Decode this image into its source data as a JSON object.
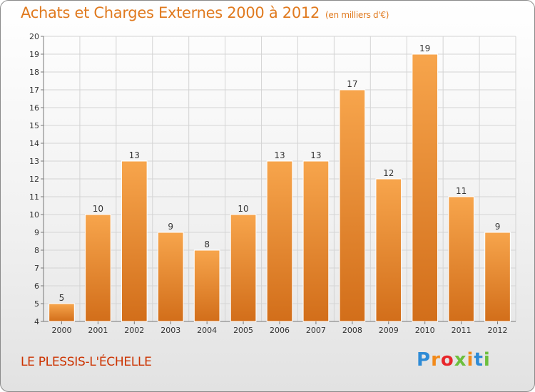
{
  "title": "Achats et Charges Externes 2000 à 2012",
  "unit": "(en milliers d'€)",
  "commune": "LE PLESSIS-L'ÉCHELLE",
  "logo": {
    "text": "Proxiti",
    "letter_colors": [
      "#2e8bd6",
      "#f28a1a",
      "#e8262b",
      "#6cbf3c",
      "#f28a1a",
      "#2e8bd6",
      "#6cbf3c"
    ]
  },
  "colors": {
    "bar_light": "#f7a54c",
    "bar_dark": "#d26e1a",
    "title": "#e07a1f",
    "commune": "#cc3300"
  },
  "chart_data": {
    "type": "bar",
    "title": "Achats et Charges Externes 2000 à 2012",
    "categories": [
      "2000",
      "2001",
      "2002",
      "2003",
      "2004",
      "2005",
      "2006",
      "2007",
      "2008",
      "2009",
      "2010",
      "2011",
      "2012"
    ],
    "values": [
      5,
      10,
      13,
      9,
      8,
      10,
      13,
      13,
      17,
      12,
      19,
      11,
      9
    ],
    "ylim": [
      4,
      20
    ],
    "yticks": [
      4,
      5,
      6,
      7,
      8,
      9,
      10,
      11,
      12,
      13,
      14,
      15,
      16,
      17,
      18,
      19,
      20
    ],
    "grid": true,
    "xlabel": "",
    "ylabel": ""
  }
}
